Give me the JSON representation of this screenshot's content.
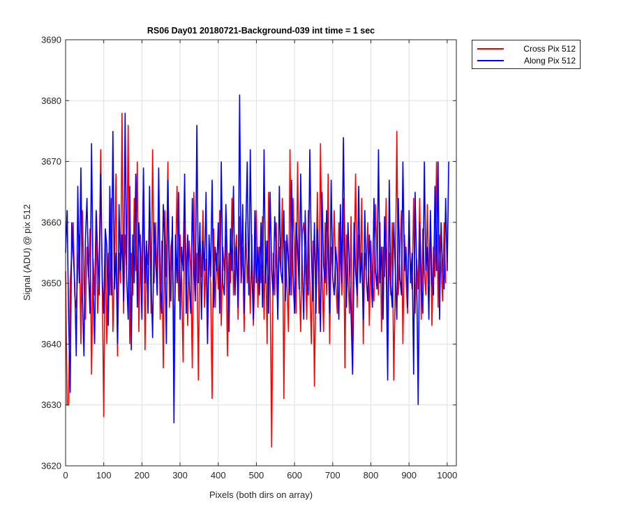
{
  "chart_data": {
    "type": "line",
    "title": "RS06 Day01 20180721-Background-039 int time = 1 sec",
    "xlabel": "Pixels (both dirs on array)",
    "ylabel": "Signal (ADU) @ pix 512",
    "xlim": [
      0,
      1024
    ],
    "ylim": [
      3620,
      3690
    ],
    "xticks": [
      0,
      100,
      200,
      300,
      400,
      500,
      600,
      700,
      800,
      900,
      1000
    ],
    "yticks": [
      3620,
      3630,
      3640,
      3650,
      3660,
      3670,
      3680,
      3690
    ],
    "grid": true,
    "legend_position": "outside-top-right",
    "series": [
      {
        "name": "Cross Pix 512",
        "color": "#ff0000",
        "sample_step": 4,
        "values": [
          3652,
          3630,
          3630,
          3650,
          3655,
          3660,
          3648,
          3646,
          3652,
          3658,
          3640,
          3662,
          3650,
          3644,
          3656,
          3651,
          3659,
          3635,
          3654,
          3648,
          3662,
          3645,
          3652,
          3672,
          3650,
          3628,
          3658,
          3640,
          3655,
          3648,
          3664,
          3642,
          3652,
          3668,
          3638,
          3655,
          3650,
          3678,
          3645,
          3658,
          3652,
          3676,
          3640,
          3655,
          3648,
          3664,
          3652,
          3670,
          3642,
          3658,
          3650,
          3668,
          3639,
          3656,
          3653,
          3661,
          3645,
          3672,
          3650,
          3660,
          3648,
          3666,
          3644,
          3657,
          3636,
          3662,
          3651,
          3670,
          3646,
          3656,
          3658,
          3640,
          3652,
          3666,
          3647,
          3658,
          3650,
          3637,
          3661,
          3654,
          3643,
          3657,
          3652,
          3636,
          3665,
          3648,
          3655,
          3634,
          3658,
          3651,
          3662,
          3646,
          3654,
          3640,
          3656,
          3650,
          3631,
          3659,
          3646,
          3655,
          3649,
          3662,
          3643,
          3656,
          3652,
          3658,
          3638,
          3655,
          3650,
          3664,
          3648,
          3654,
          3658,
          3644,
          3661,
          3650,
          3656,
          3642,
          3660,
          3650,
          3656,
          3645,
          3658,
          3643,
          3652,
          3662,
          3646,
          3656,
          3650,
          3661,
          3644,
          3657,
          3640,
          3665,
          3651,
          3623,
          3655,
          3648,
          3660,
          3645,
          3656,
          3652,
          3664,
          3631,
          3657,
          3650,
          3642,
          3672,
          3648,
          3664,
          3655,
          3645,
          3670,
          3651,
          3642,
          3658,
          3660,
          3654,
          3644,
          3662,
          3650,
          3640,
          3657,
          3633,
          3652,
          3665,
          3645,
          3673,
          3652,
          3642,
          3660,
          3648,
          3668,
          3640,
          3656,
          3652,
          3662,
          3650,
          3645,
          3660,
          3655,
          3648,
          3664,
          3636,
          3658,
          3651,
          3645,
          3661,
          3635,
          3652,
          3668,
          3646,
          3658,
          3650,
          3664,
          3640,
          3655,
          3652,
          3660,
          3643,
          3657,
          3650,
          3647,
          3663,
          3654,
          3648,
          3660,
          3642,
          3656,
          3651,
          3664,
          3640,
          3655,
          3648,
          3660,
          3634,
          3650,
          3675,
          3648,
          3655,
          3662,
          3640,
          3658,
          3651,
          3645,
          3660,
          3652,
          3649,
          3664,
          3645,
          3654,
          3649,
          3664,
          3644,
          3659,
          3652,
          3648,
          3663,
          3650,
          3660,
          3643,
          3656,
          3651,
          3670,
          3646,
          3658,
          3653,
          3647,
          3660,
          3650
        ]
      },
      {
        "name": "Along Pix 512",
        "color": "#0000ff",
        "sample_step": 4,
        "values": [
          3655,
          3662,
          3644,
          3632,
          3660,
          3655,
          3650,
          3638,
          3666,
          3650,
          3669,
          3648,
          3638,
          3657,
          3664,
          3652,
          3645,
          3673,
          3650,
          3640,
          3662,
          3655,
          3648,
          3668,
          3651,
          3645,
          3659,
          3656,
          3643,
          3666,
          3648,
          3675,
          3649,
          3655,
          3640,
          3663,
          3652,
          3658,
          3647,
          3678,
          3651,
          3644,
          3666,
          3639,
          3658,
          3650,
          3668,
          3646,
          3660,
          3654,
          3644,
          3669,
          3650,
          3657,
          3645,
          3666,
          3651,
          3641,
          3660,
          3654,
          3648,
          3669,
          3650,
          3645,
          3663,
          3656,
          3640,
          3667,
          3652,
          3647,
          3661,
          3627,
          3658,
          3650,
          3665,
          3644,
          3656,
          3652,
          3668,
          3645,
          3658,
          3650,
          3645,
          3664,
          3653,
          3647,
          3676,
          3650,
          3660,
          3644,
          3657,
          3652,
          3665,
          3640,
          3658,
          3651,
          3667,
          3646,
          3656,
          3652,
          3660,
          3645,
          3670,
          3650,
          3648,
          3663,
          3653,
          3642,
          3659,
          3652,
          3666,
          3648,
          3656,
          3646,
          3681,
          3650,
          3663,
          3645,
          3658,
          3670,
          3648,
          3672,
          3652,
          3644,
          3662,
          3650,
          3656,
          3648,
          3660,
          3646,
          3672,
          3650,
          3657,
          3645,
          3665,
          3652,
          3648,
          3661,
          3655,
          3644,
          3666,
          3652,
          3650,
          3662,
          3647,
          3658,
          3653,
          3648,
          3667,
          3652,
          3645,
          3660,
          3656,
          3649,
          3668,
          3653,
          3644,
          3662,
          3650,
          3648,
          3672,
          3655,
          3647,
          3660,
          3645,
          3659,
          3652,
          3642,
          3665,
          3653,
          3650,
          3662,
          3655,
          3645,
          3667,
          3651,
          3648,
          3656,
          3652,
          3644,
          3663,
          3650,
          3674,
          3655,
          3646,
          3660,
          3652,
          3645,
          3635,
          3660,
          3652,
          3648,
          3666,
          3650,
          3655,
          3644,
          3662,
          3651,
          3647,
          3658,
          3652,
          3646,
          3664,
          3652,
          3649,
          3672,
          3650,
          3656,
          3644,
          3661,
          3653,
          3634,
          3667,
          3650,
          3646,
          3660,
          3652,
          3644,
          3664,
          3651,
          3648,
          3670,
          3652,
          3656,
          3646,
          3662,
          3650,
          3655,
          3635,
          3665,
          3652,
          3630,
          3660,
          3650,
          3645,
          3670,
          3652,
          3656,
          3644,
          3662,
          3650,
          3648,
          3666,
          3652,
          3670,
          3644,
          3660,
          3652,
          3649,
          3664,
          3652,
          3670
        ]
      }
    ]
  }
}
